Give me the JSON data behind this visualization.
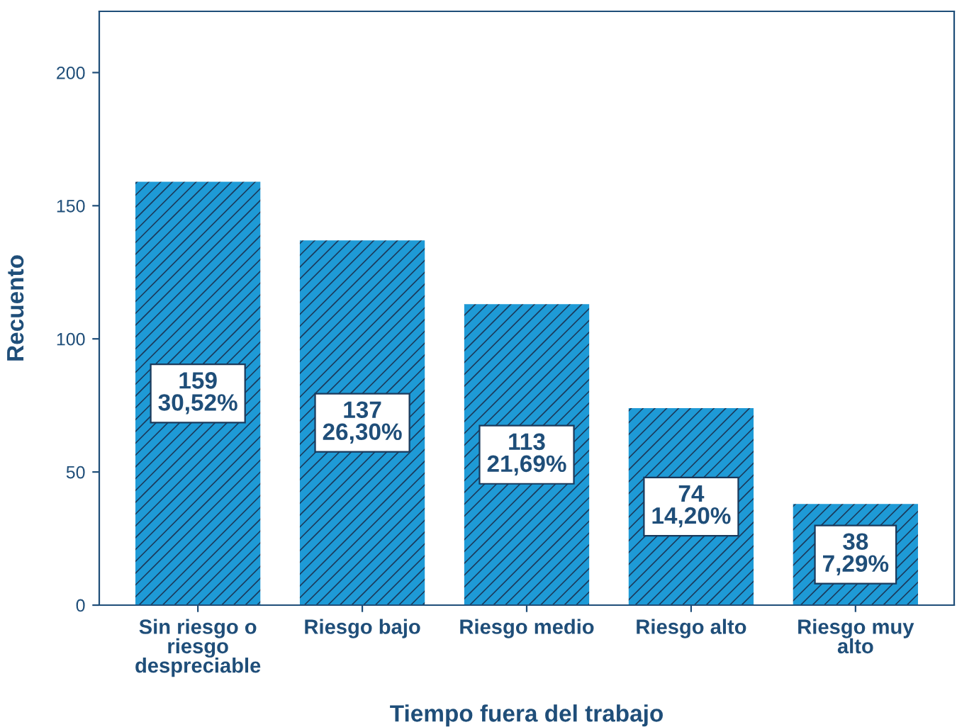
{
  "chart_data": {
    "type": "bar",
    "xlabel": "Tiempo fuera del trabajo",
    "ylabel": "Recuento",
    "categories": [
      "Sin riesgo o\nriesgo\ndespreciable",
      "Riesgo bajo",
      "Riesgo medio",
      "Riesgo alto",
      "Riesgo muy\nalto"
    ],
    "values": [
      159,
      137,
      113,
      74,
      38
    ],
    "value_labels": [
      "159\n30,52%",
      "137\n26,30%",
      "113\n21,69%",
      "74\n14,20%",
      "38\n7,29%"
    ],
    "color": "#1e9ad6",
    "ylim": [
      0,
      223
    ],
    "yticks": [
      0,
      50,
      100,
      150,
      200
    ],
    "grid": false,
    "legend": false
  }
}
